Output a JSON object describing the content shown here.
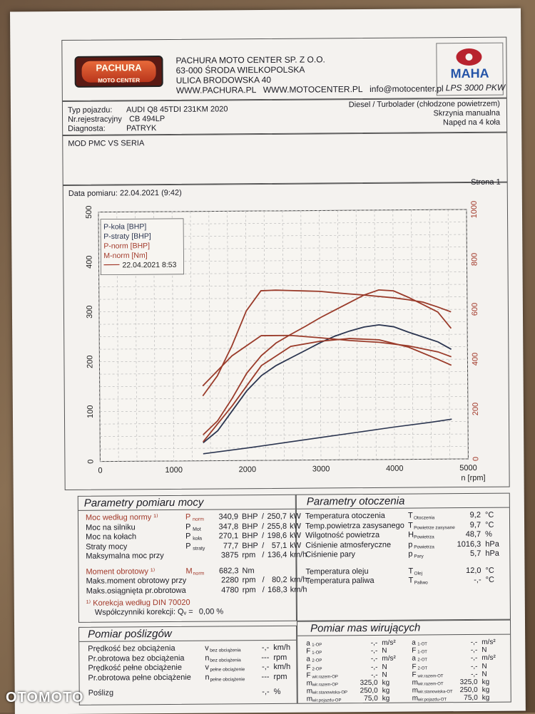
{
  "company": {
    "logo_text": "PACHURA",
    "logo_sub": "MOTO CENTER",
    "name": "PACHURA MOTO CENTER SP. Z O.O.",
    "address1": "63-000 ŚRODA WIELKOPOLSKA",
    "address2": "ULICA BRODOWSKA 40",
    "web": "WWW.PACHURA.PL   WWW.MOTOCENTER.PL   info@motocenter.pl"
  },
  "maha": {
    "logo": "MAHA",
    "model": "LPS 3000 PKW"
  },
  "vehicle": {
    "type_label": "Typ pojazdu:",
    "type_value": "AUDI Q8 45TDI 231KM 2020",
    "reg_label": "Nr.rejestracyjny",
    "reg_value": "CB 494LP",
    "diag_label": "Diagnosta:",
    "diag_value": "PATRYK",
    "engine": "Diesel / Turbolader (chłodzone powietrzem)",
    "gearbox": "Skrzynia manualna",
    "drive": "Napęd na 4 koła"
  },
  "comment": "MOD PMC VS SERIA",
  "date_label": "Data pomiaru: 22.04.2021 (9:42)",
  "page_label": "Strona 1",
  "chart_data": {
    "type": "line",
    "xlabel": "n [rpm]",
    "xlim": [
      0,
      5000
    ],
    "ylim_left": [
      0,
      500
    ],
    "ylim_right": [
      0,
      1000
    ],
    "x_ticks": [
      "0",
      "1000",
      "2000",
      "3000",
      "4000",
      "5000"
    ],
    "y_ticks_left": [
      "0",
      "100",
      "200",
      "300",
      "400",
      "500"
    ],
    "y_ticks_right": [
      "0",
      "200",
      "400",
      "600",
      "800",
      "1000"
    ],
    "grid": true,
    "legend": [
      "P-koła [BHP]",
      "P-straty [BHP]",
      "P-norm [BHP]",
      "M-norm [Nm]",
      "22.04.2021 8:53"
    ],
    "series": [
      {
        "name": "P-koła [BHP]",
        "axis": "left",
        "color": "#2b3550",
        "x": [
          1400,
          1600,
          1800,
          2000,
          2200,
          2400,
          2600,
          2800,
          3000,
          3200,
          3400,
          3600,
          3800,
          4000,
          4200,
          4400,
          4600,
          4780
        ],
        "y": [
          36,
          60,
          100,
          140,
          170,
          190,
          205,
          220,
          235,
          248,
          258,
          266,
          270,
          266,
          255,
          245,
          235,
          220
        ]
      },
      {
        "name": "P-straty [BHP]",
        "axis": "left",
        "color": "#2b3550",
        "x": [
          1400,
          2000,
          2500,
          3000,
          3500,
          4000,
          4500,
          4780
        ],
        "y": [
          14,
          25,
          35,
          45,
          55,
          65,
          74,
          80
        ]
      },
      {
        "name": "P-norm [BHP]",
        "axis": "left",
        "color": "#9a3b2a",
        "x": [
          1400,
          1600,
          1800,
          2000,
          2200,
          2400,
          2600,
          2800,
          3000,
          3200,
          3400,
          3600,
          3800,
          4000,
          4200,
          4400,
          4600,
          4780
        ],
        "y": [
          52,
          80,
          125,
          175,
          210,
          235,
          252,
          268,
          285,
          300,
          315,
          330,
          340,
          338,
          325,
          310,
          295,
          262
        ]
      },
      {
        "name": "M-norm [Nm]",
        "axis": "right",
        "color": "#9a3b2a",
        "x": [
          1400,
          1600,
          1800,
          2000,
          2200,
          2400,
          2600,
          2800,
          3000,
          3200,
          3400,
          3600,
          3800,
          4000,
          4200,
          4400,
          4600,
          4780
        ],
        "y": [
          260,
          340,
          460,
          600,
          680,
          682,
          680,
          678,
          676,
          670,
          665,
          660,
          654,
          648,
          640,
          630,
          610,
          590
        ]
      },
      {
        "name": "22.04.2021 8:53",
        "axis": "left",
        "color": "#9a3b2a",
        "x": [
          1400,
          1800,
          2200,
          2600,
          3000,
          3400,
          3800,
          4200,
          4600,
          4780
        ],
        "y": [
          38,
          110,
          190,
          228,
          238,
          243,
          240,
          225,
          200,
          188
        ]
      },
      {
        "name": "22.04.2021 8:53",
        "axis": "right",
        "color": "#9a3b2a",
        "x": [
          1400,
          1800,
          2200,
          2600,
          3000,
          3400,
          3800,
          4200,
          4600,
          4780
        ],
        "y": [
          300,
          420,
          500,
          500,
          490,
          478,
          470,
          455,
          430,
          410
        ]
      }
    ]
  },
  "power": {
    "title": "Parametry pomiaru mocy",
    "rows": [
      {
        "label": "Moc według normy ¹⁾",
        "sym": "P",
        "sub": "norm",
        "v1": "340,9",
        "u1": "BHP",
        "v2": "250,7",
        "u2": "kW"
      },
      {
        "label": "Moc na silniku",
        "sym": "P",
        "sub": "Mot",
        "v1": "347,8",
        "u1": "BHP",
        "v2": "255,8",
        "u2": "kW"
      },
      {
        "label": "Moc na kołach",
        "sym": "P",
        "sub": "koła",
        "v1": "270,1",
        "u1": "BHP",
        "v2": "198,6",
        "u2": "kW"
      },
      {
        "label": "Straty mocy",
        "sym": "P",
        "sub": "straty",
        "v1": "77,7",
        "u1": "BHP",
        "v2": "57,1",
        "u2": "kW"
      },
      {
        "label": "Maksymalna moc przy",
        "sym": "",
        "sub": "",
        "v1": "3875",
        "u1": "rpm",
        "v2": "136,4",
        "u2": "km/h"
      },
      {
        "label": "Moment obrotowy ¹⁾",
        "sym": "M",
        "sub": "norm",
        "v1": "682,3",
        "u1": "Nm",
        "v2": "",
        "u2": ""
      },
      {
        "label": "Maks.moment obrotowy przy",
        "sym": "",
        "sub": "",
        "v1": "2280",
        "u1": "rpm",
        "v2": "80,2",
        "u2": "km/h"
      },
      {
        "label": "Maks.osiągnięta pr.obrotowa",
        "sym": "",
        "sub": "",
        "v1": "4780",
        "u1": "rpm",
        "v2": "168,3",
        "u2": "km/h"
      }
    ],
    "note1": "¹⁾ Korekcja według DIN 70020",
    "note2": "Współczynniki korekcji: Qᵥ =",
    "note2_value": "0,00 %"
  },
  "env": {
    "title": "Parametry otoczenia",
    "rows": [
      {
        "label": "Temperatura otoczenia",
        "sym": "T",
        "sub": "Otoczenia",
        "val": "9,2",
        "unit": "°C"
      },
      {
        "label": "Temp.powietrza zasysanego",
        "sym": "T",
        "sub": "Powietrze zasysane",
        "val": "9,7",
        "unit": "°C"
      },
      {
        "label": "Wilgotność powietrza",
        "sym": "H",
        "sub": "Powietrza",
        "val": "48,7",
        "unit": "%"
      },
      {
        "label": "Ciśnienie atmosferyczne",
        "sym": "p",
        "sub": "Powietrza",
        "val": "1016,3",
        "unit": "hPa"
      },
      {
        "label": "Ciśnienie pary",
        "sym": "p",
        "sub": "Pary",
        "val": "5,7",
        "unit": "hPa"
      },
      {
        "label": "Temperatura oleju",
        "sym": "T",
        "sub": "Olej",
        "val": "12,0",
        "unit": "°C"
      },
      {
        "label": "Temperatura paliwa",
        "sym": "T",
        "sub": "Paliwo",
        "val": "-,-",
        "unit": "°C"
      }
    ]
  },
  "slip": {
    "title": "Pomiar poślizgów",
    "rows": [
      {
        "label": "Prędkość bez obciążenia",
        "sym": "v",
        "sub": "bez obciążenia",
        "val": "-,-",
        "unit": "km/h"
      },
      {
        "label": "Pr.obrotowa bez obciążenia",
        "sym": "n",
        "sub": "bez obciążenia",
        "val": "---",
        "unit": "rpm"
      },
      {
        "label": "Prędkość pełne obciążenie",
        "sym": "v",
        "sub": "pełne obciążenie",
        "val": "-,-",
        "unit": "km/h"
      },
      {
        "label": "Pr.obrotowa pełne obciążenie",
        "sym": "n",
        "sub": "pełne obciążenie",
        "val": "---",
        "unit": "rpm"
      },
      {
        "label": "Poślizg",
        "sym": "",
        "sub": "",
        "val": "-,-",
        "unit": "%"
      }
    ]
  },
  "mass": {
    "title": "Pomiar mas wirujących",
    "rows": [
      {
        "s1": "a",
        "b1": "1-OP",
        "v1": "-,-",
        "u1": "m/s²",
        "s2": "a",
        "b2": "1-OT",
        "v2": "-,-",
        "u2": "m/s²"
      },
      {
        "s1": "F",
        "b1": "1-OP",
        "v1": "-,-",
        "u1": "N",
        "s2": "F",
        "b2": "1-OT",
        "v2": "-,-",
        "u2": "N"
      },
      {
        "s1": "a",
        "b1": "2-OP",
        "v1": "-,-",
        "u1": "m/s²",
        "s2": "a",
        "b2": "2-OT",
        "v2": "-,-",
        "u2": "m/s²"
      },
      {
        "s1": "F",
        "b1": "2-OP",
        "v1": "-,-",
        "u1": "N",
        "s2": "F",
        "b2": "2-OT",
        "v2": "-,-",
        "u2": "N"
      },
      {
        "s1": "F",
        "b1": "wir.razem-OP",
        "v1": "-,-",
        "u1": "N",
        "s2": "F",
        "b2": "wir.razem-OT",
        "v2": "-,-",
        "u2": "N"
      },
      {
        "s1": "m",
        "b1": "wir.razem-OP",
        "v1": "325,0",
        "u1": "kg",
        "s2": "m",
        "b2": "wir.razem-OT",
        "v2": "325,0",
        "u2": "kg"
      },
      {
        "s1": "m",
        "b1": "wir.stanowiska-OP",
        "v1": "250,0",
        "u1": "kg",
        "s2": "m",
        "b2": "wir.stanowiska-OT",
        "v2": "250,0",
        "u2": "kg"
      },
      {
        "s1": "m",
        "b1": "wir.pojazdu-OP",
        "v1": "75,0",
        "u1": "kg",
        "s2": "m",
        "b2": "wir.pojazdu-OT",
        "v2": "75,0",
        "u2": "kg"
      }
    ]
  },
  "watermark": "OTOMOTO"
}
